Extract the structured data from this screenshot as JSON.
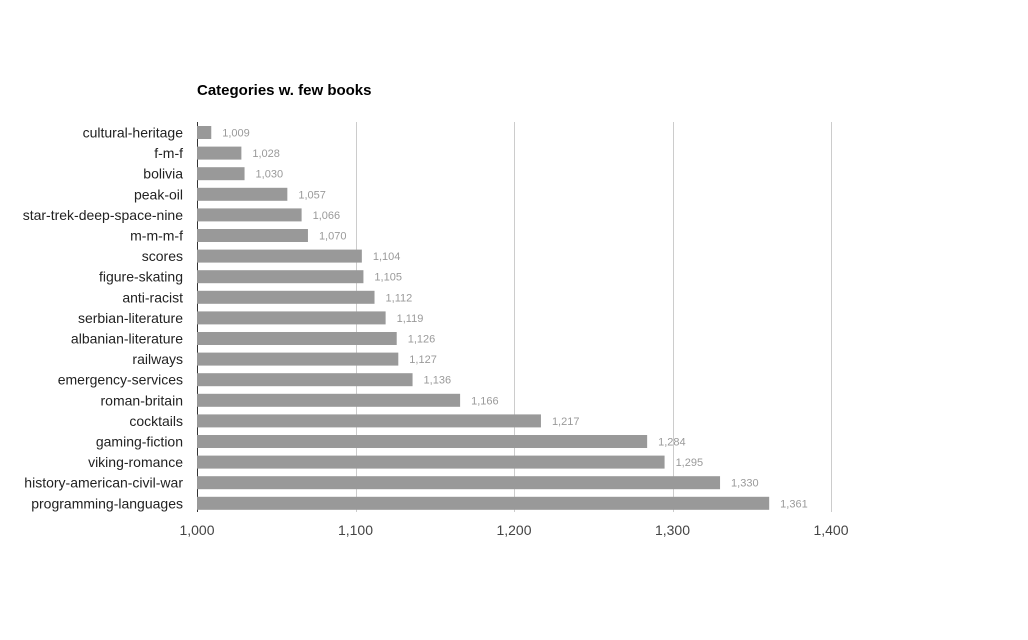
{
  "chart_data": {
    "type": "bar",
    "orientation": "horizontal",
    "title": "Categories w. few books",
    "xlabel": "",
    "ylabel": "",
    "xlim": [
      1000,
      1400
    ],
    "x_ticks": [
      1000,
      1100,
      1200,
      1300,
      1400
    ],
    "x_tick_labels": [
      "1,000",
      "1,100",
      "1,200",
      "1,300",
      "1,400"
    ],
    "grid": "vertical",
    "legend": "none",
    "bar_color": "#999999",
    "grid_color": "#cccccc",
    "categories": [
      "cultural-heritage",
      "f-m-f",
      "bolivia",
      "peak-oil",
      "star-trek-deep-space-nine",
      "m-m-m-f",
      "scores",
      "figure-skating",
      "anti-racist",
      "serbian-literature",
      "albanian-literature",
      "railways",
      "emergency-services",
      "roman-britain",
      "cocktails",
      "gaming-fiction",
      "viking-romance",
      "history-american-civil-war",
      "programming-languages"
    ],
    "values": [
      1009,
      1028,
      1030,
      1057,
      1066,
      1070,
      1104,
      1105,
      1112,
      1119,
      1126,
      1127,
      1136,
      1166,
      1217,
      1284,
      1295,
      1330,
      1361
    ],
    "value_labels": [
      "1,009",
      "1,028",
      "1,030",
      "1,057",
      "1,066",
      "1,070",
      "1,104",
      "1,105",
      "1,112",
      "1,119",
      "1,126",
      "1,127",
      "1,136",
      "1,166",
      "1,217",
      "1,284",
      "1,295",
      "1,330",
      "1,361"
    ]
  }
}
